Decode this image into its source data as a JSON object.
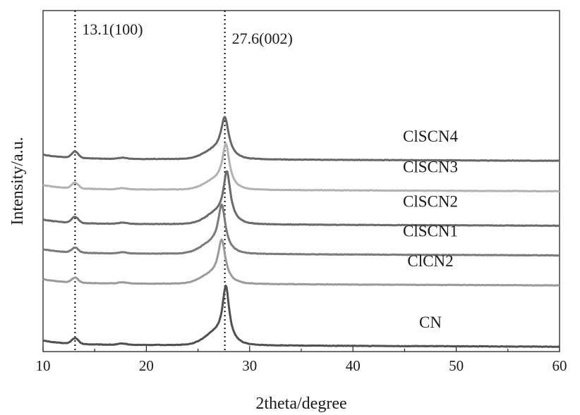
{
  "chart_data": {
    "type": "line",
    "title": "",
    "xlabel": "2theta/degree",
    "ylabel": "Intensity/a.u.",
    "xlim": [
      10,
      60
    ],
    "ylim": [
      0,
      8.4
    ],
    "x_ticks": [
      10,
      20,
      30,
      40,
      50,
      60
    ],
    "grid": false,
    "legend": "inline labels at right of each curve",
    "reference_lines": [
      {
        "x": 13.1,
        "label": "13.1(100)"
      },
      {
        "x": 27.6,
        "label": "27.6(002)"
      }
    ],
    "series": [
      {
        "name": "CN",
        "color": "#505050",
        "baseline": 0.17,
        "peak_x": 27.7,
        "peak_height": 1.55,
        "peak_width": 0.38,
        "shoulder_height": 0.14,
        "label_x": 47.5
      },
      {
        "name": "ClCN2",
        "color": "#9a9a9a",
        "baseline": 1.68,
        "peak_x": 27.3,
        "peak_height": 1.15,
        "peak_width": 0.42,
        "shoulder_height": 0.12,
        "label_x": 47.5
      },
      {
        "name": "ClSCN1",
        "color": "#7a7a7a",
        "baseline": 2.42,
        "peak_x": 27.3,
        "peak_height": 1.28,
        "peak_width": 0.42,
        "shoulder_height": 0.12,
        "label_x": 47.5
      },
      {
        "name": "ClSCN2",
        "color": "#6a6a6a",
        "baseline": 3.15,
        "peak_x": 27.8,
        "peak_height": 1.38,
        "peak_width": 0.4,
        "shoulder_height": 0.15,
        "label_x": 47.5
      },
      {
        "name": "ClSCN3",
        "color": "#b2b2b2",
        "baseline": 4.0,
        "peak_x": 27.7,
        "peak_height": 1.2,
        "peak_width": 0.4,
        "shoulder_height": 0.14,
        "label_x": 47.5
      },
      {
        "name": "ClSCN4",
        "color": "#666666",
        "baseline": 4.75,
        "peak_x": 27.6,
        "peak_height": 1.1,
        "peak_width": 0.45,
        "shoulder_height": 0.16,
        "label_x": 47.5
      }
    ]
  }
}
